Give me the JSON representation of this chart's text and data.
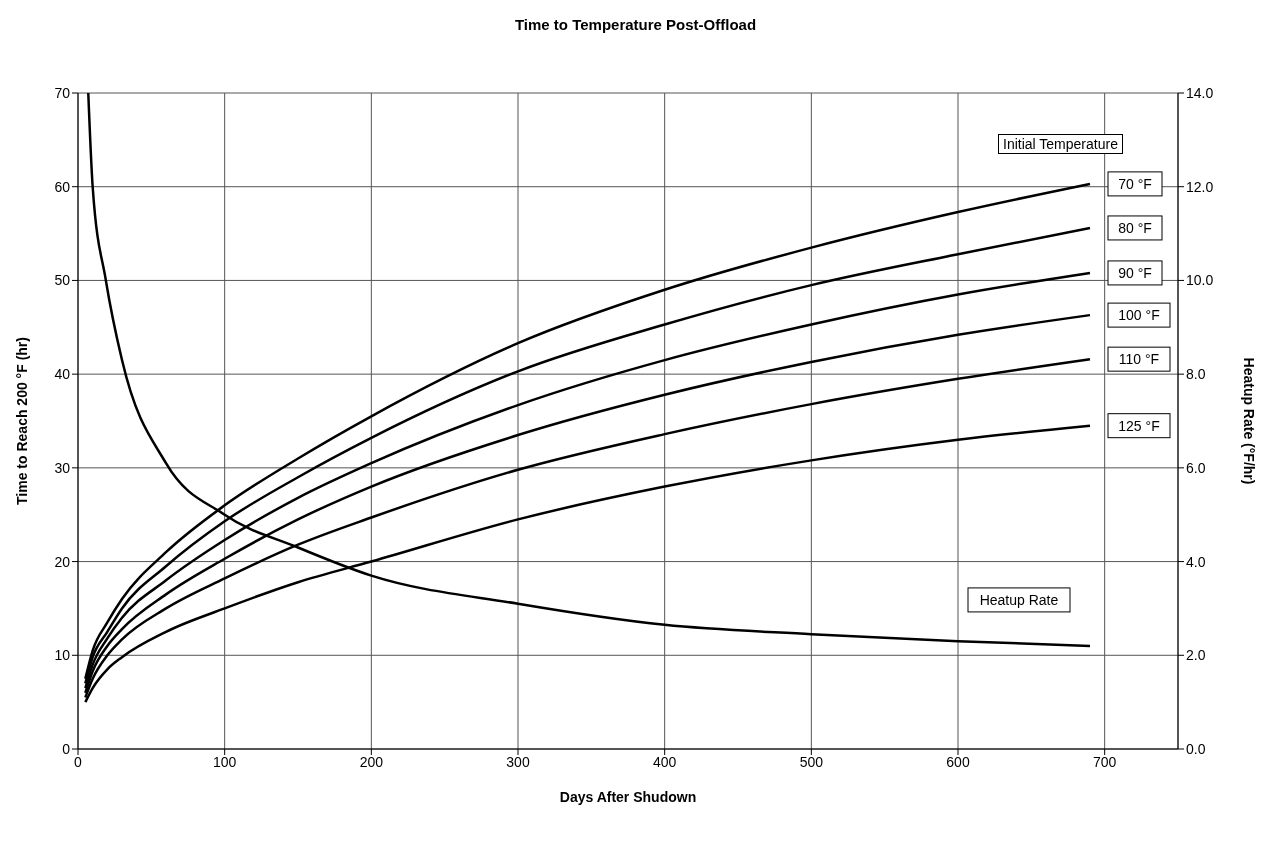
{
  "chart_data": {
    "type": "line",
    "title": "Time to Temperature Post-Offload",
    "xlabel": "Days After Shudown",
    "ylabel": "Time to Reach 200 °F (hr)",
    "y2label": "Heatup Rate (°F/hr)",
    "annotations": [
      "Initial Temperature"
    ],
    "x": [
      5,
      10,
      20,
      30,
      60,
      100,
      150,
      200,
      300,
      400,
      500,
      600,
      690
    ],
    "series": [
      {
        "name": "70 °F",
        "color": "#000000",
        "values": [
          7.5,
          10.5,
          13.5,
          16,
          21,
          26,
          31,
          35.5,
          43.3,
          49,
          53.5,
          57.3,
          60.3
        ]
      },
      {
        "name": "80 °F",
        "color": "#000000",
        "values": [
          7,
          9.8,
          12.5,
          15,
          19.5,
          24.3,
          29,
          33.2,
          40.3,
          45.3,
          49.5,
          52.8,
          55.6
        ]
      },
      {
        "name": "90 °F",
        "color": "#000000",
        "values": [
          6.5,
          9,
          11.8,
          14,
          18,
          22.3,
          26.8,
          30.5,
          36.7,
          41.5,
          45.3,
          48.5,
          50.8
        ]
      },
      {
        "name": "100 °F",
        "color": "#000000",
        "values": [
          6,
          8.3,
          11,
          12.8,
          16.5,
          20.3,
          24.5,
          28,
          33.5,
          37.8,
          41.3,
          44.2,
          46.3
        ]
      },
      {
        "name": "110 °F",
        "color": "#000000",
        "values": [
          5.5,
          7.5,
          10,
          11.7,
          15,
          18.2,
          21.8,
          24.7,
          29.8,
          33.6,
          36.8,
          39.5,
          41.6
        ]
      },
      {
        "name": "125 °F",
        "color": "#000000",
        "values": [
          5,
          6.5,
          8.5,
          9.8,
          12.5,
          15,
          17.8,
          20,
          24.5,
          28,
          30.8,
          33,
          34.5
        ]
      },
      {
        "name": "Heatup Rate",
        "color": "#000000",
        "axis": "y2",
        "x": [
          7,
          10,
          19,
          30,
          60,
          100,
          150,
          200,
          300,
          400,
          500,
          600,
          690
        ],
        "values": [
          14,
          12,
          10,
          8.3,
          6.1,
          5,
          4.3,
          3.7,
          3.1,
          2.65,
          2.45,
          2.3,
          2.2
        ]
      }
    ],
    "xlim": [
      0,
      750
    ],
    "xticks": [
      0,
      100,
      200,
      300,
      400,
      500,
      600,
      700
    ],
    "ylim": [
      0,
      70
    ],
    "yticks": [
      0,
      10,
      20,
      30,
      40,
      50,
      60,
      70
    ],
    "y2lim": [
      0,
      14
    ],
    "y2ticks": [
      {
        "value": 0,
        "label": "0.0"
      },
      {
        "value": 2,
        "label": "2.0"
      },
      {
        "value": 4,
        "label": "4.0"
      },
      {
        "value": 6,
        "label": "6.0"
      },
      {
        "value": 8,
        "label": "8.0"
      },
      {
        "value": 10,
        "label": "10.0"
      },
      {
        "value": 12,
        "label": "12.0"
      },
      {
        "value": 14,
        "label": "14.0"
      }
    ],
    "grid": true,
    "marker": "none",
    "line_style": "solid"
  }
}
